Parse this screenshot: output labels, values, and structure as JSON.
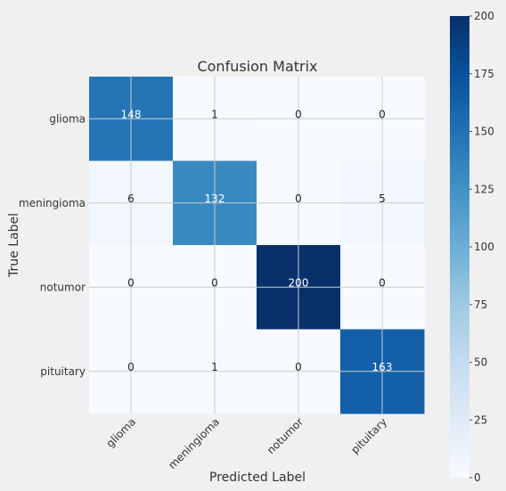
{
  "chart_data": {
    "type": "heatmap",
    "title": "Confusion Matrix",
    "xlabel": "Predicted Label",
    "ylabel": "True Label",
    "x_categories": [
      "glioma",
      "meningioma",
      "notumor",
      "pituitary"
    ],
    "y_categories": [
      "glioma",
      "meningioma",
      "notumor",
      "pituitary"
    ],
    "values": [
      [
        148,
        1,
        0,
        0
      ],
      [
        6,
        132,
        0,
        5
      ],
      [
        0,
        0,
        200,
        0
      ],
      [
        0,
        1,
        0,
        163
      ]
    ],
    "colormap": "Blues",
    "color_range": [
      0,
      200
    ],
    "colorbar_ticks": [
      "0",
      "25",
      "50",
      "75",
      "100",
      "125",
      "150",
      "175",
      "200"
    ],
    "grid": true,
    "x_tick_rotation": 45
  }
}
